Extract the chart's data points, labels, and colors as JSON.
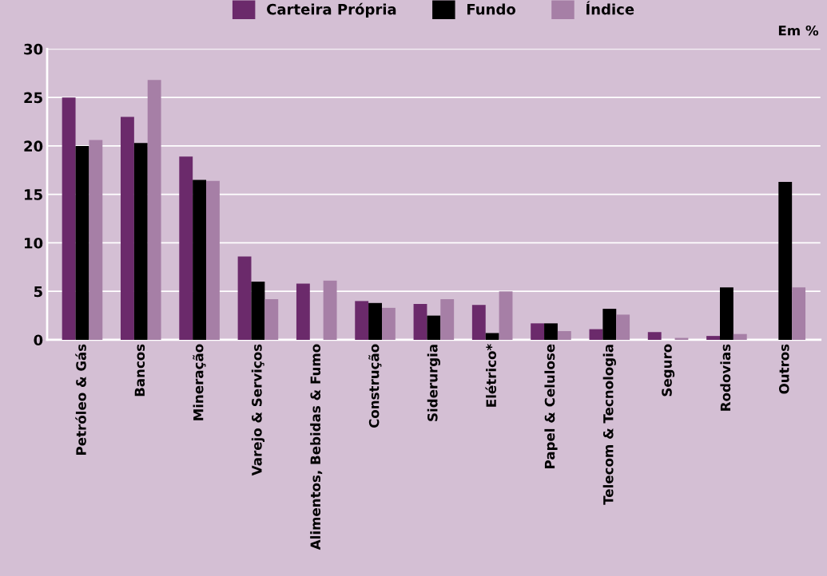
{
  "chart_data": {
    "type": "bar",
    "categories": [
      "Petróleo & Gás",
      "Bancos",
      "Mineração",
      "Varejo & Serviços",
      "Alimentos, Bebidas & Fumo",
      "Construção",
      "Siderurgia",
      "Elétrico*",
      "Papel & Celulose",
      "Telecom & Tecnologia",
      "Seguro",
      "Rodovias",
      "Outros"
    ],
    "series": [
      {
        "name": "Carteira Própria",
        "color": "#6b2a6b",
        "values": [
          25,
          23,
          18.9,
          8.6,
          5.8,
          4.0,
          3.7,
          3.6,
          1.7,
          1.1,
          0.8,
          0.4,
          null
        ]
      },
      {
        "name": "Fundo",
        "color": "#000000",
        "values": [
          20,
          20.3,
          16.5,
          6.0,
          null,
          3.8,
          2.5,
          0.7,
          1.7,
          3.2,
          null,
          5.4,
          16.3
        ]
      },
      {
        "name": "Índice",
        "color": "#a67fa6",
        "values": [
          20.6,
          26.8,
          16.4,
          4.2,
          6.1,
          3.3,
          4.2,
          5.0,
          0.9,
          2.6,
          0.2,
          0.6,
          5.4
        ]
      }
    ],
    "ylim": [
      0,
      30
    ],
    "yticks": [
      0,
      5,
      10,
      15,
      20,
      25,
      30
    ],
    "grid": "y",
    "legend": "top",
    "annotations": [
      "Em %"
    ]
  }
}
